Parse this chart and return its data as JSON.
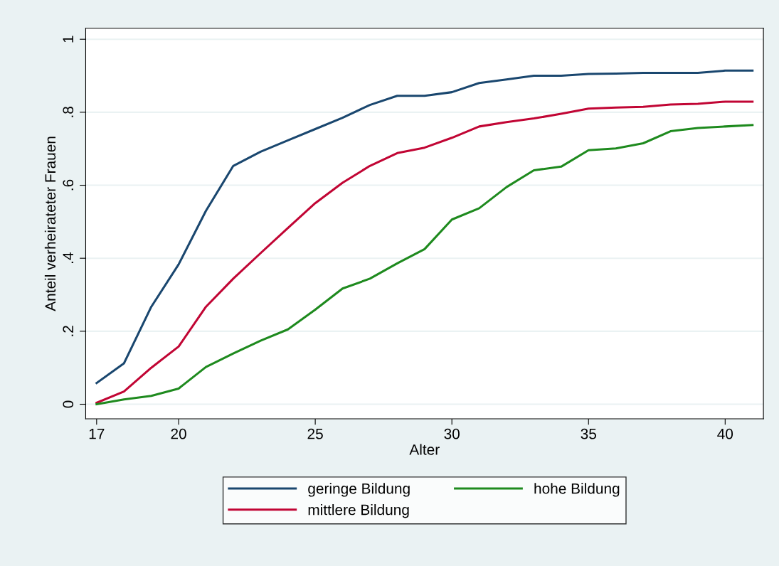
{
  "chart_data": {
    "type": "line",
    "xlabel": "Alter",
    "ylabel": "Anteil verheirateter Frauen",
    "x": [
      17,
      18,
      19,
      20,
      21,
      22,
      23,
      24,
      25,
      26,
      27,
      28,
      29,
      30,
      31,
      32,
      33,
      34,
      35,
      36,
      37,
      38,
      39,
      40,
      41
    ],
    "series": [
      {
        "name": "geringe Bildung",
        "color": "#1a476f",
        "values": [
          0.058,
          0.112,
          0.267,
          0.383,
          0.53,
          0.653,
          0.692,
          0.723,
          0.754,
          0.785,
          0.82,
          0.845,
          0.845,
          0.855,
          0.88,
          0.89,
          0.9,
          0.9,
          0.905,
          0.906,
          0.908,
          0.908,
          0.908,
          0.914,
          0.914
        ]
      },
      {
        "name": "mittlere Bildung",
        "color": "#c10534",
        "values": [
          0.004,
          0.035,
          0.1,
          0.158,
          0.267,
          0.344,
          0.414,
          0.483,
          0.551,
          0.607,
          0.653,
          0.688,
          0.703,
          0.73,
          0.761,
          0.773,
          0.783,
          0.796,
          0.81,
          0.813,
          0.815,
          0.821,
          0.823,
          0.829,
          0.829
        ]
      },
      {
        "name": "hohe Bildung",
        "color": "#1e8a1e",
        "values": [
          0,
          0.013,
          0.023,
          0.043,
          0.102,
          0.139,
          0.174,
          0.205,
          0.259,
          0.317,
          0.344,
          0.386,
          0.425,
          0.506,
          0.537,
          0.595,
          0.641,
          0.651,
          0.696,
          0.701,
          0.715,
          0.748,
          0.757,
          0.761,
          0.765
        ]
      }
    ],
    "xlim": [
      16.6,
      41.4
    ],
    "xticks": [
      17,
      20,
      25,
      30,
      35,
      40
    ],
    "ylim": [
      -0.04,
      1.03
    ],
    "yticks": [
      0,
      {
        "value": 0.2,
        "label": ".2"
      },
      {
        "value": 0.4,
        "label": ".4"
      },
      {
        "value": 0.6,
        "label": ".6"
      },
      {
        "value": 0.8,
        "label": ".8"
      },
      1
    ],
    "grid": "y",
    "legend": "bottom",
    "marker": "none",
    "line_style": "solid"
  }
}
